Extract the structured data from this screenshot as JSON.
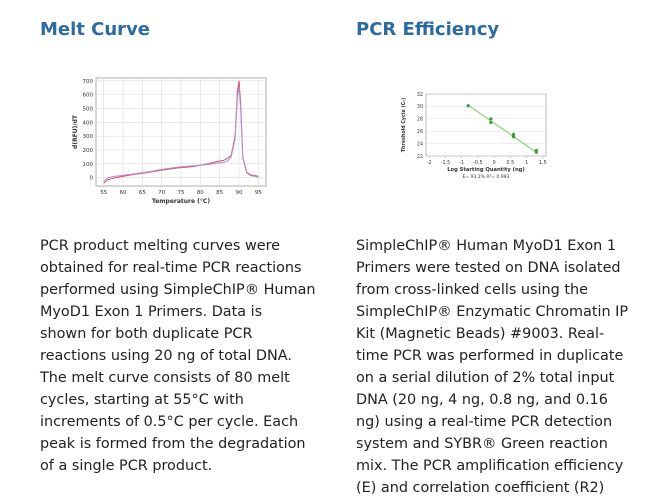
{
  "melt_section": {
    "title": "Melt Curve",
    "caption_lines": [
      "PCR product melting curves were",
      "obtained for real-time PCR reactions",
      "performed using SimpleChIP® Human",
      "MyoD1 Exon 1 Primers. Data is",
      "shown for both duplicate PCR",
      "reactions using 20 ng of total DNA.",
      "The melt curve consists of 80 melt",
      "cycles, starting at 55°C with",
      "increments of 0.5°C per cycle. Each",
      "peak is formed from the degradation",
      "of a single PCR product."
    ]
  },
  "efficiency_section": {
    "title": "PCR Efficiency",
    "caption_lines": [
      "SimpleChIP® Human MyoD1 Exon 1",
      "Primers were tested on DNA isolated",
      "from cross-linked cells using the",
      "SimpleChIP® Enzymatic Chromatin IP",
      "Kit (Magnetic Beads) #9003. Real-",
      "time PCR was performed in duplicate",
      "on a serial dilution of 2% total input",
      "DNA (20 ng, 4 ng, 0.8 ng, and 0.16",
      "ng) using a real-time PCR detection",
      "system and SYBR® Green reaction",
      "mix. The PCR amplification efficiency",
      "(E) and correlation coefficient (R2)"
    ]
  },
  "chart_data": [
    {
      "type": "line",
      "xlabel": "Temperature (°C)",
      "ylabel": "d(RFU)/dT",
      "xlim": [
        53,
        97
      ],
      "ylim": [
        -60,
        720
      ],
      "xticks": [
        "55",
        "60",
        "65",
        "70",
        "75",
        "80",
        "85",
        "90",
        "95"
      ],
      "yticks": [
        "700",
        "600",
        "500",
        "400",
        "300",
        "200",
        "100",
        "0"
      ],
      "grid": true,
      "series": [
        {
          "color": "#d94a5c",
          "points": [
            [
              55,
              -40
            ],
            [
              56,
              -15
            ],
            [
              58,
              0
            ],
            [
              62,
              20
            ],
            [
              66,
              35
            ],
            [
              70,
              55
            ],
            [
              74,
              70
            ],
            [
              78,
              80
            ],
            [
              82,
              100
            ],
            [
              84,
              115
            ],
            [
              86,
              125
            ],
            [
              87,
              140
            ],
            [
              88,
              160
            ],
            [
              89,
              300
            ],
            [
              89.6,
              620
            ],
            [
              90,
              700
            ],
            [
              90.4,
              560
            ],
            [
              91,
              150
            ],
            [
              92,
              40
            ],
            [
              93,
              20
            ],
            [
              95,
              10
            ]
          ]
        },
        {
          "color": "#b08fd0",
          "points": [
            [
              55,
              -25
            ],
            [
              56,
              0
            ],
            [
              58,
              10
            ],
            [
              62,
              25
            ],
            [
              66,
              40
            ],
            [
              70,
              60
            ],
            [
              74,
              75
            ],
            [
              78,
              85
            ],
            [
              82,
              95
            ],
            [
              84,
              105
            ],
            [
              86,
              110
            ],
            [
              87,
              120
            ],
            [
              88,
              150
            ],
            [
              89,
              280
            ],
            [
              89.6,
              580
            ],
            [
              90,
              660
            ],
            [
              90.4,
              520
            ],
            [
              91,
              140
            ],
            [
              92,
              35
            ],
            [
              93,
              15
            ],
            [
              95,
              5
            ]
          ]
        }
      ]
    },
    {
      "type": "scatter",
      "xlabel": "Log Starting Quantity (ng)",
      "ylabel": "Threshold Cycle (Cₜ)",
      "xlim": [
        -2.1,
        1.6
      ],
      "ylim": [
        22,
        32
      ],
      "xticks": [
        "-2",
        "-1.5",
        "-1",
        "-0.5",
        "0",
        "0.5",
        "1",
        "1.5"
      ],
      "yticks": [
        "32",
        "30",
        "28",
        "26",
        "24",
        "22"
      ],
      "grid": true,
      "points": [
        [
          -0.8,
          30.1
        ],
        [
          -0.1,
          28.0
        ],
        [
          -0.1,
          27.4
        ],
        [
          0.6,
          25.5
        ],
        [
          0.6,
          25.1
        ],
        [
          1.3,
          22.9
        ],
        [
          1.3,
          22.6
        ]
      ],
      "fit_line": [
        [
          -0.8,
          30.2
        ],
        [
          1.3,
          22.6
        ]
      ],
      "series_color": "#3a9a3a",
      "line_color": "#8fd17f",
      "annotation": "E= 93.1%    R²= 0.993"
    }
  ]
}
